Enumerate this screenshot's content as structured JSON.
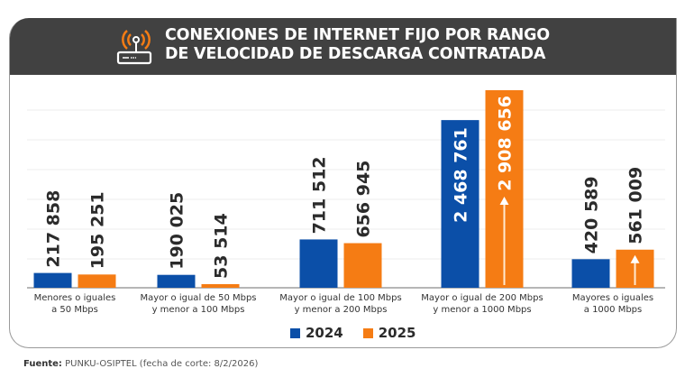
{
  "header": {
    "title_line1": "CONEXIONES DE INTERNET FIJO POR RANGO",
    "title_line2": "DE VELOCIDAD DE DESCARGA CONTRATADA",
    "icon": "router-wifi-icon"
  },
  "colors": {
    "series_2024": "#0b4fa8",
    "series_2025": "#f57c14",
    "header_bg": "#414141",
    "label_dark": "#2b2b2b",
    "label_light": "#ffffff"
  },
  "chart_data": {
    "type": "bar",
    "title": "CONEXIONES DE INTERNET FIJO POR RANGO DE VELOCIDAD DE DESCARGA CONTRATADA",
    "xlabel": "",
    "ylabel": "",
    "ylim": [
      0,
      3000000
    ],
    "grid": true,
    "legend_position": "bottom",
    "categories": [
      [
        "Menores o iguales",
        "a 50 Mbps"
      ],
      [
        "Mayor o igual de 50 Mbps",
        "y menor a 100 Mbps"
      ],
      [
        "Mayor o igual de 100 Mbps",
        "y menor a 200 Mbps"
      ],
      [
        "Mayor o igual de 200 Mbps",
        "y menor a 1000 Mbps"
      ],
      [
        "Mayores o iguales",
        "a 1000 Mbps"
      ]
    ],
    "series": [
      {
        "name": "2024",
        "values": [
          217858,
          190025,
          711512,
          2468761,
          420589
        ],
        "labels": [
          "217 858",
          "190 025",
          "711 512",
          "2 468 761",
          "420 589"
        ],
        "label_inside": [
          false,
          false,
          false,
          true,
          false
        ]
      },
      {
        "name": "2025",
        "values": [
          195251,
          53514,
          656945,
          2908656,
          561009
        ],
        "labels": [
          "195 251",
          "53 514",
          "656 945",
          "2 908 656",
          "561 009"
        ],
        "label_inside": [
          false,
          false,
          false,
          true,
          false
        ],
        "growth_arrow": [
          false,
          false,
          false,
          true,
          true
        ]
      }
    ]
  },
  "legend": [
    {
      "label": "2024"
    },
    {
      "label": "2025"
    }
  ],
  "source": {
    "prefix": "Fuente:",
    "text": " PUNKU-OSIPTEL (fecha de corte: 8/2/2026)"
  }
}
